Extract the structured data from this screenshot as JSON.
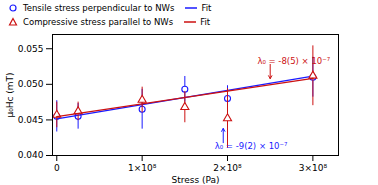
{
  "chart_data": {
    "type": "scatter",
    "xlabel": "Stress (Pa)",
    "ylabel": "μ₀Hᴄ (mT)",
    "xlim": [
      -5000000,
      330000000
    ],
    "ylim": [
      0.04,
      0.057
    ],
    "xticks": [
      0,
      {
        "value": 100000000,
        "label": "1×10⁸"
      },
      {
        "value": 200000000,
        "label": "2×10⁸"
      },
      {
        "value": 300000000,
        "label": "3×10⁸"
      }
    ],
    "yticks": [
      {
        "value": 0.04,
        "label": "0.040"
      },
      0.045,
      {
        "value": 0.05,
        "label": "0.050"
      },
      0.055
    ],
    "grid": false,
    "legend": "upper left",
    "series": [
      {
        "name": "Tensile stress perpendicular to NWs",
        "type": "scatter",
        "marker": "circle",
        "color": "#1a1aff",
        "x": [
          0,
          25000000,
          100000000,
          150000000,
          200000000,
          300000000
        ],
        "values": [
          0.0455,
          0.0455,
          0.0465,
          0.0493,
          0.048,
          0.051
        ],
        "yerr": [
          0.0022,
          0.0018,
          0.0028,
          0.0018,
          0.0018,
          0.0028
        ]
      },
      {
        "name": "Fit",
        "type": "line",
        "line_style": "solid",
        "color": "#1a1aff",
        "x": [
          0,
          300000000
        ],
        "values": [
          0.04515,
          0.05115
        ]
      },
      {
        "name": "Compressive stress parallel to NWs",
        "type": "scatter",
        "marker": "triangle",
        "color": "#cc1111",
        "x": [
          0,
          25000000,
          100000000,
          150000000,
          200000000,
          300000000
        ],
        "values": [
          0.0457,
          0.0462,
          0.0478,
          0.0468,
          0.0452,
          0.0512
        ],
        "yerr": [
          0.0018,
          0.0013,
          0.0018,
          0.0022,
          0.0042,
          0.0042
        ]
      },
      {
        "name": "Fit",
        "type": "line",
        "line_style": "solid",
        "color": "#cc1111",
        "x": [
          0,
          300000000
        ],
        "values": [
          0.04545,
          0.05085
        ]
      }
    ],
    "annotations": [
      {
        "text": "λ₀ = -8(5) × 10⁻⁷",
        "x": 235000000,
        "y": 0.0533,
        "color": "#cc1111",
        "arrow": {
          "x1": 250000000,
          "y1": 0.0528,
          "x2": 250000000,
          "y2": 0.0508
        }
      },
      {
        "text": "λ₀ = -9(2) × 10⁻⁷",
        "x": 185000000,
        "y": 0.0413,
        "color": "#1a1aff",
        "arrow": {
          "x1": 195000000,
          "y1": 0.0418,
          "x2": 195000000,
          "y2": 0.0438
        }
      }
    ]
  }
}
